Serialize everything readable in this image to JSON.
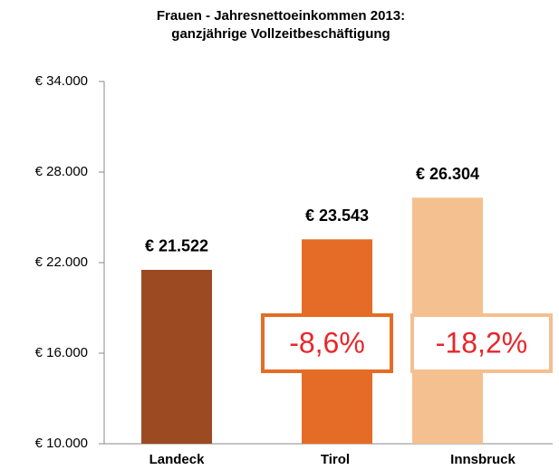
{
  "chart_data": {
    "type": "bar",
    "title": "Frauen - Jahresnettoeinkommen 2013:",
    "subtitle": "ganzjährige Vollzeitbeschäftigung",
    "categories": [
      "Landeck",
      "Tirol",
      "Innsbruck"
    ],
    "values": [
      21522,
      23543,
      26304
    ],
    "value_labels": [
      "€ 21.522",
      "€ 23.543",
      "€ 26.304"
    ],
    "colors": [
      "#9b4a22",
      "#e56c26",
      "#f5c090"
    ],
    "ylim": [
      10000,
      34000
    ],
    "yticks": [
      {
        "value": 10000,
        "label": "€ 10.000"
      },
      {
        "value": 16000,
        "label": "€ 16.000"
      },
      {
        "value": 22000,
        "label": "€ 22.000"
      },
      {
        "value": 28000,
        "label": "€ 28.000"
      },
      {
        "value": 34000,
        "label": "€ 34.000"
      }
    ],
    "grid": false,
    "annotations": [
      {
        "text": "-8,6%",
        "category": "Tirol",
        "color": "#e56c26"
      },
      {
        "text": "-18,2%",
        "category": "Innsbruck",
        "color": "#f5c090"
      }
    ]
  }
}
